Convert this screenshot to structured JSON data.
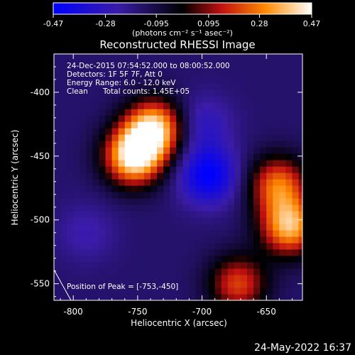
{
  "chart_data": {
    "type": "heatmap",
    "title": "Reconstructed RHESSI Image",
    "colorbar": {
      "ticks": [
        "-0.47",
        "-0.28",
        "-0.095",
        "0.095",
        "0.28",
        "0.47"
      ],
      "range": [
        -0.47,
        0.47
      ],
      "unit_label": "(photons cm⁻² s⁻¹ asec⁻²)"
    },
    "annotations": [
      "24-Dec-2015 07:54:52.000 to 08:00:52.000",
      "Detectors: 1F 5F 7F, Att 0",
      "Energy Range: 6.0 - 12.0 keV",
      "Clean",
      "Total counts: 1.45E+05"
    ],
    "peak_label": "Position of Peak = [-753,-450]",
    "xlabel": "Heliocentric X (arcsec)",
    "ylabel": "Heliocentric Y (arcsec)",
    "xlim": [
      -815,
      -622
    ],
    "ylim": [
      -563,
      -370
    ],
    "xticks": [
      "-800",
      "-750",
      "-700",
      "-650"
    ],
    "yticks": [
      "-400",
      "-450",
      "-500",
      "-550"
    ],
    "xtick_values": [
      -800,
      -750,
      -700,
      -650
    ],
    "ytick_values": [
      -400,
      -450,
      -500,
      -550
    ],
    "grid": false,
    "colormap": "rhessi-rainbow",
    "sources": [
      {
        "x": -753,
        "y": -450,
        "value": 0.47
      },
      {
        "x": -737,
        "y": -428,
        "value": 0.4
      },
      {
        "x": -632,
        "y": -505,
        "value": 0.36
      },
      {
        "x": -641,
        "y": -472,
        "value": 0.25
      },
      {
        "x": -672,
        "y": -550,
        "value": 0.2
      },
      {
        "x": -695,
        "y": -465,
        "value": -0.47
      },
      {
        "x": -700,
        "y": -425,
        "value": -0.3
      },
      {
        "x": -790,
        "y": -510,
        "value": -0.25
      }
    ]
  },
  "footer_date": "24-May-2022 16:37"
}
